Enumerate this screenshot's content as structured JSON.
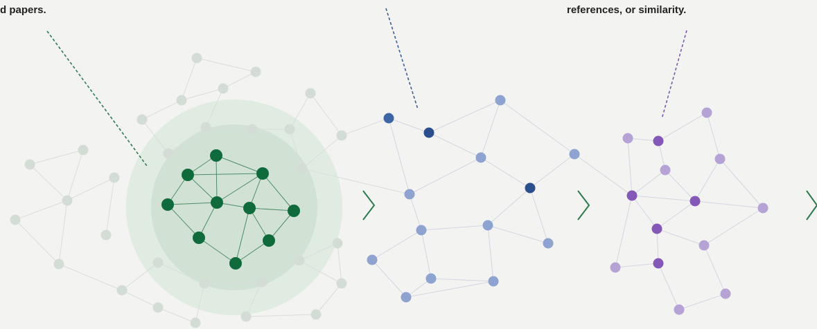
{
  "texts": {
    "left": "d papers.",
    "right": "references, or similarity."
  }
}
